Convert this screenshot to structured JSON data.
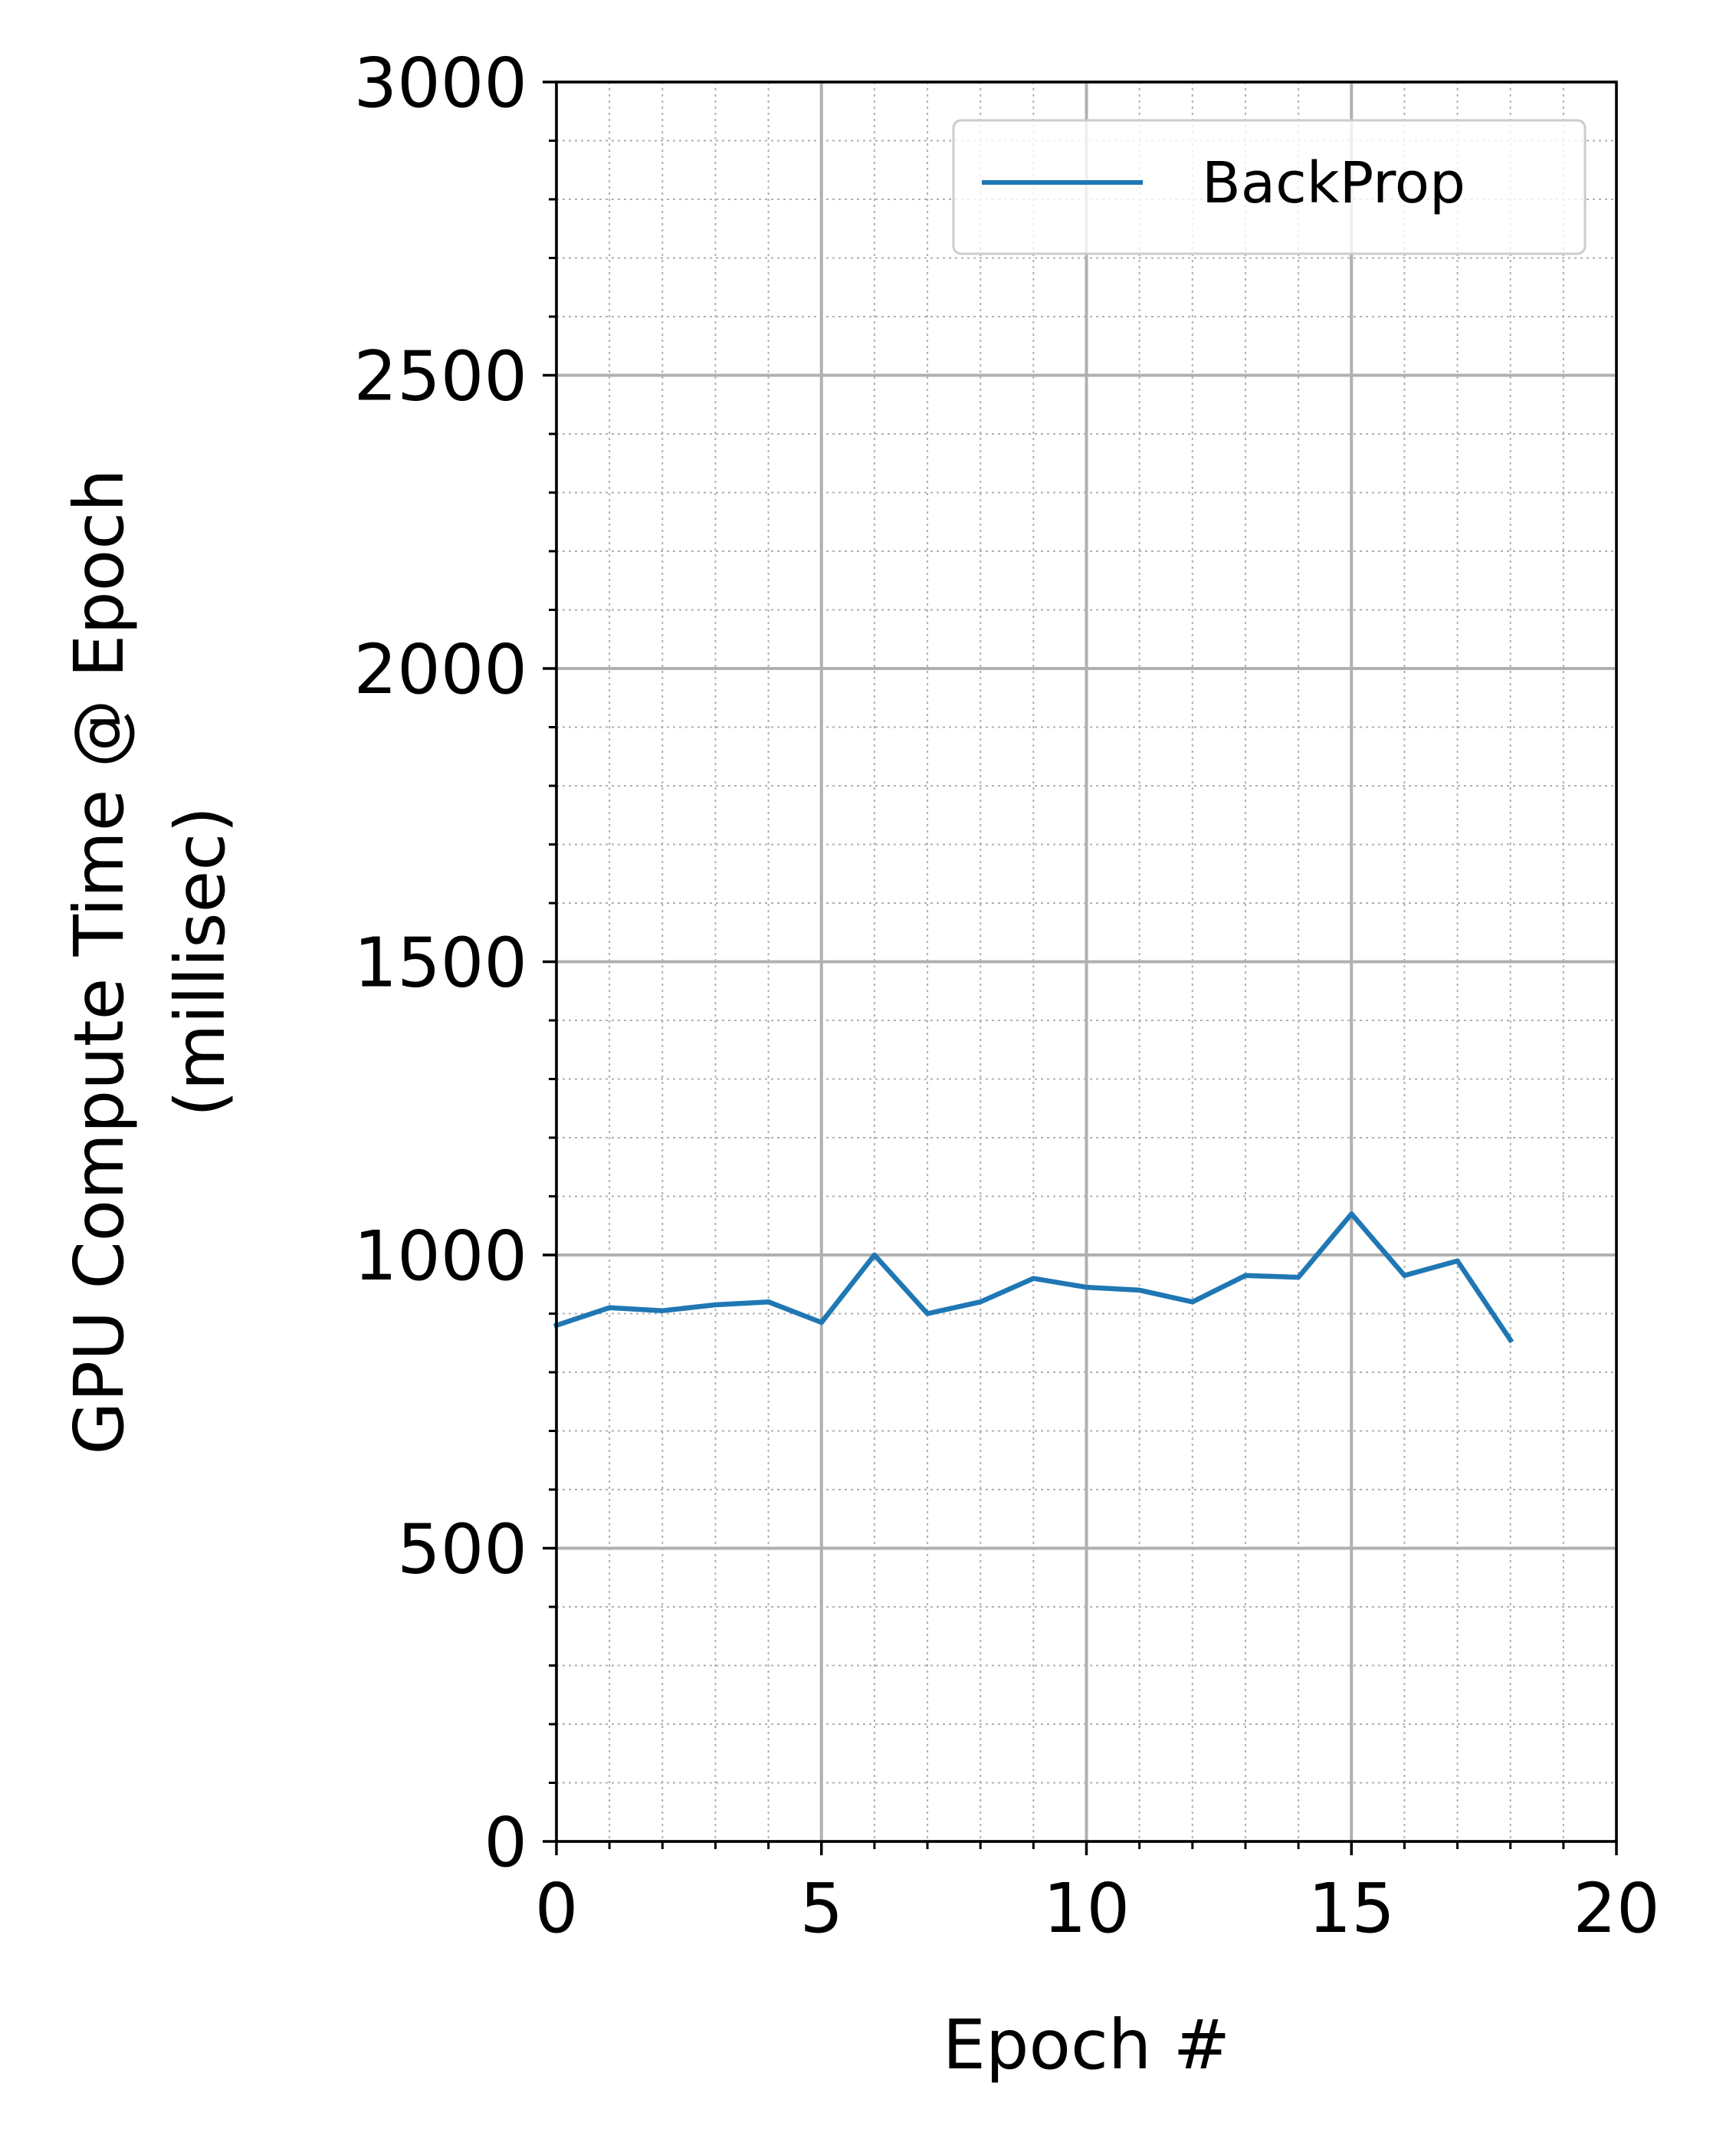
{
  "chart_data": {
    "type": "line",
    "title": "",
    "xlabel": "Epoch #",
    "ylabel": [
      "GPU Compute Time @ Epoch",
      "(millisec)"
    ],
    "xlim": [
      0,
      20
    ],
    "ylim": [
      0,
      3000
    ],
    "x_ticks": [
      0,
      5,
      10,
      15,
      20
    ],
    "x_tick_labels": [
      "0",
      "5",
      "10",
      "15",
      "20"
    ],
    "y_ticks": [
      0,
      500,
      1000,
      1500,
      2000,
      2500,
      3000
    ],
    "y_tick_labels": [
      "0",
      "500",
      "1000",
      "1500",
      "2000",
      "2500",
      "3000"
    ],
    "x_minor_step": 1,
    "y_minor_step": 100,
    "grid": {
      "major": true,
      "minor": true
    },
    "legend_position": "top-right",
    "series": [
      {
        "name": "BackProp",
        "color": "#1f77b4",
        "x": [
          0,
          1,
          2,
          3,
          4,
          5,
          6,
          7,
          8,
          9,
          10,
          11,
          12,
          13,
          14,
          15,
          16,
          17,
          18
        ],
        "values": [
          880,
          910,
          905,
          915,
          920,
          885,
          1000,
          900,
          920,
          960,
          945,
          940,
          920,
          965,
          962,
          1070,
          965,
          990,
          855
        ]
      }
    ],
    "colors": {
      "major_grid": "#b0b0b0",
      "minor_grid": "#b0b0b0",
      "axes": "#000000",
      "legend_border": "#cccccc"
    }
  }
}
